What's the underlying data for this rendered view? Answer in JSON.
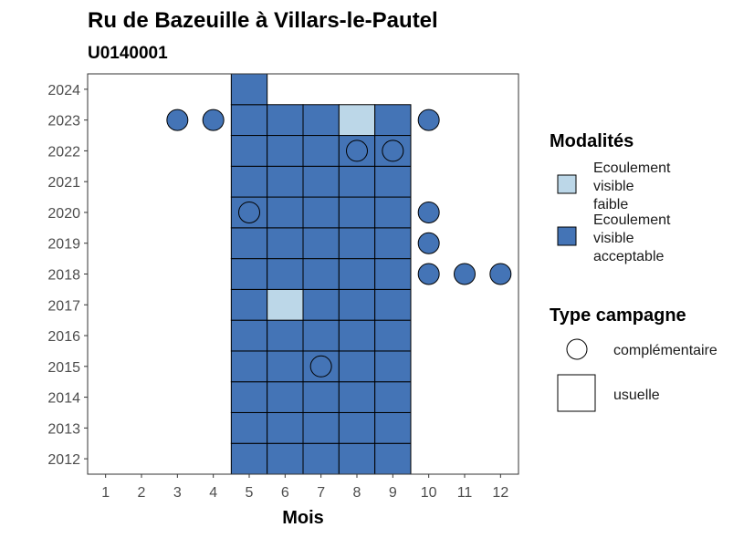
{
  "chart_data": {
    "type": "heatmap",
    "title": "Ru de Bazeuille à Villars-le-Pautel",
    "subtitle": "U0140001",
    "xlabel": "Mois",
    "ylabel": "",
    "x_ticks": [
      "1",
      "2",
      "3",
      "4",
      "5",
      "6",
      "7",
      "8",
      "9",
      "10",
      "11",
      "12"
    ],
    "y_ticks": [
      "2012",
      "2013",
      "2014",
      "2015",
      "2016",
      "2017",
      "2018",
      "2019",
      "2020",
      "2021",
      "2022",
      "2023",
      "2024"
    ],
    "xlim": [
      0.5,
      12.5
    ],
    "ylim": [
      2011.5,
      2024.5
    ],
    "colors": {
      "faible": "#bcd7e8",
      "acceptable": "#4474b6"
    },
    "legend": {
      "modalites_title": "Modalités",
      "modalites": [
        {
          "key": "faible",
          "lines": [
            "Ecoulement",
            "visible",
            "faible"
          ]
        },
        {
          "key": "acceptable",
          "lines": [
            "Ecoulement",
            "visible",
            "acceptable"
          ]
        }
      ],
      "type_title": "Type campagne",
      "types": [
        {
          "key": "complementaire",
          "label": "complémentaire",
          "shape": "circle"
        },
        {
          "key": "usuelle",
          "label": "usuelle",
          "shape": "square"
        }
      ]
    },
    "usuelle": [
      {
        "year": 2012,
        "months": [
          5,
          6,
          7,
          8,
          9
        ],
        "values": [
          "acceptable",
          "acceptable",
          "acceptable",
          "acceptable",
          "acceptable"
        ]
      },
      {
        "year": 2013,
        "months": [
          5,
          6,
          7,
          8,
          9
        ],
        "values": [
          "acceptable",
          "acceptable",
          "acceptable",
          "acceptable",
          "acceptable"
        ]
      },
      {
        "year": 2014,
        "months": [
          5,
          6,
          7,
          8,
          9
        ],
        "values": [
          "acceptable",
          "acceptable",
          "acceptable",
          "acceptable",
          "acceptable"
        ]
      },
      {
        "year": 2015,
        "months": [
          5,
          6,
          7,
          8,
          9
        ],
        "values": [
          "acceptable",
          "acceptable",
          "acceptable",
          "acceptable",
          "acceptable"
        ]
      },
      {
        "year": 2016,
        "months": [
          5,
          6,
          7,
          8,
          9
        ],
        "values": [
          "acceptable",
          "acceptable",
          "acceptable",
          "acceptable",
          "acceptable"
        ]
      },
      {
        "year": 2017,
        "months": [
          5,
          6,
          7,
          8,
          9
        ],
        "values": [
          "acceptable",
          "faible",
          "acceptable",
          "acceptable",
          "acceptable"
        ]
      },
      {
        "year": 2018,
        "months": [
          5,
          6,
          7,
          8,
          9
        ],
        "values": [
          "acceptable",
          "acceptable",
          "acceptable",
          "acceptable",
          "acceptable"
        ]
      },
      {
        "year": 2019,
        "months": [
          5,
          6,
          7,
          8,
          9
        ],
        "values": [
          "acceptable",
          "acceptable",
          "acceptable",
          "acceptable",
          "acceptable"
        ]
      },
      {
        "year": 2020,
        "months": [
          5,
          6,
          7,
          8,
          9
        ],
        "values": [
          "acceptable",
          "acceptable",
          "acceptable",
          "acceptable",
          "acceptable"
        ]
      },
      {
        "year": 2021,
        "months": [
          5,
          6,
          7,
          8,
          9
        ],
        "values": [
          "acceptable",
          "acceptable",
          "acceptable",
          "acceptable",
          "acceptable"
        ]
      },
      {
        "year": 2022,
        "months": [
          5,
          6,
          7,
          8,
          9
        ],
        "values": [
          "acceptable",
          "acceptable",
          "acceptable",
          "acceptable",
          "acceptable"
        ]
      },
      {
        "year": 2023,
        "months": [
          5,
          6,
          7,
          8,
          9
        ],
        "values": [
          "acceptable",
          "acceptable",
          "acceptable",
          "faible",
          "acceptable"
        ]
      },
      {
        "year": 2024,
        "months": [
          5
        ],
        "values": [
          "acceptable"
        ]
      }
    ],
    "complementaire": [
      {
        "year": 2023,
        "month": 3,
        "value": "acceptable"
      },
      {
        "year": 2023,
        "month": 4,
        "value": "acceptable"
      },
      {
        "year": 2023,
        "month": 10,
        "value": "acceptable"
      },
      {
        "year": 2022,
        "month": 8,
        "value": "acceptable"
      },
      {
        "year": 2022,
        "month": 9,
        "value": "acceptable"
      },
      {
        "year": 2020,
        "month": 5,
        "value": "acceptable"
      },
      {
        "year": 2020,
        "month": 10,
        "value": "acceptable"
      },
      {
        "year": 2019,
        "month": 10,
        "value": "acceptable"
      },
      {
        "year": 2018,
        "month": 10,
        "value": "acceptable"
      },
      {
        "year": 2018,
        "month": 11,
        "value": "acceptable"
      },
      {
        "year": 2018,
        "month": 12,
        "value": "acceptable"
      },
      {
        "year": 2015,
        "month": 7,
        "value": "acceptable"
      }
    ]
  }
}
